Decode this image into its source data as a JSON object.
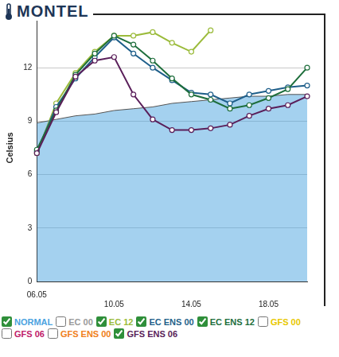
{
  "chart_data": {
    "type": "line",
    "title": "MONTEL",
    "y_label": "Celsius",
    "categories": [
      "06.05",
      null,
      null,
      null,
      "10.05",
      null,
      null,
      null,
      "14.05",
      null,
      null,
      null,
      "18.05",
      null,
      null
    ],
    "ylim": [
      0,
      15
    ],
    "yticks": [
      0,
      3,
      6,
      9,
      12
    ],
    "grid": true,
    "legend": "bottom",
    "series": [
      {
        "name": "NORMAL",
        "color": "#4aa3df",
        "type": "area",
        "values": [
          8.9,
          9.1,
          9.3,
          9.4,
          9.6,
          9.7,
          9.8,
          10.0,
          10.1,
          10.2,
          10.3,
          10.4,
          10.4,
          10.5,
          10.5
        ]
      },
      {
        "name": "EC 00",
        "color": "#9a9a9a",
        "marker": "circle",
        "values": [
          null,
          null,
          null,
          null,
          null,
          null,
          null,
          null,
          null,
          null,
          null,
          null,
          null,
          null,
          null
        ]
      },
      {
        "name": "EC 12",
        "color": "#9bbb3b",
        "marker": "circle",
        "values": [
          7.2,
          10.0,
          11.7,
          12.9,
          13.8,
          13.8,
          14.0,
          13.4,
          12.9,
          14.1,
          null,
          null,
          null,
          null,
          null
        ]
      },
      {
        "name": "EC ENS 00",
        "color": "#1f5f8a",
        "marker": "circle",
        "values": [
          7.3,
          9.8,
          11.4,
          12.6,
          13.7,
          12.8,
          12.0,
          11.3,
          10.6,
          10.5,
          10.0,
          10.5,
          10.7,
          10.9,
          11.0
        ]
      },
      {
        "name": "EC ENS 12",
        "color": "#1e6e3c",
        "marker": "circle",
        "values": [
          7.4,
          9.6,
          11.6,
          12.8,
          13.8,
          13.3,
          12.4,
          11.4,
          10.5,
          10.2,
          9.7,
          9.9,
          10.3,
          10.8,
          12.0
        ]
      },
      {
        "name": "GFS 00",
        "color": "#e8c800",
        "marker": "circle",
        "values": [
          null,
          null,
          null,
          null,
          null,
          null,
          null,
          null,
          null,
          null,
          null,
          null,
          null,
          null,
          null
        ]
      },
      {
        "name": "GFS 06",
        "color": "#c0206a",
        "marker": "circle",
        "values": [
          null,
          null,
          null,
          null,
          null,
          null,
          null,
          null,
          null,
          null,
          null,
          null,
          null,
          null,
          null
        ]
      },
      {
        "name": "GFS ENS 00",
        "color": "#f08020",
        "marker": "circle",
        "values": [
          null,
          null,
          null,
          null,
          null,
          null,
          null,
          null,
          null,
          null,
          null,
          null,
          null,
          null,
          null
        ]
      },
      {
        "name": "GFS ENS 06",
        "color": "#5a1f5a",
        "marker": "circle",
        "values": [
          7.2,
          9.5,
          11.5,
          12.4,
          12.6,
          10.5,
          9.1,
          8.5,
          8.5,
          8.6,
          8.8,
          9.3,
          9.7,
          9.9,
          10.4
        ]
      }
    ]
  }
}
